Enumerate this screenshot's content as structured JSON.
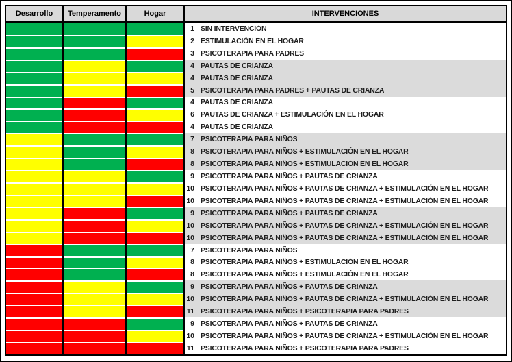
{
  "table": {
    "headers": [
      "Desarrollo",
      "Temperamento",
      "Hogar",
      "INTERVENCIONES"
    ],
    "legend_colors": {
      "green": "#00B050",
      "yellow": "#FFFF00",
      "red": "#FF0000"
    },
    "band_color": "#DBDBDB",
    "header_bg": "#D9D9D9",
    "rows": [
      {
        "colors": [
          "green",
          "green",
          "green"
        ],
        "num": "1",
        "label": "SIN INTERVENCIÓN",
        "band": false
      },
      {
        "colors": [
          "green",
          "green",
          "yellow"
        ],
        "num": "2",
        "label": "ESTIMULACIÓN EN EL HOGAR",
        "band": false
      },
      {
        "colors": [
          "green",
          "green",
          "red"
        ],
        "num": "3",
        "label": "PSICOTERAPIA PARA PADRES",
        "band": false
      },
      {
        "colors": [
          "green",
          "yellow",
          "green"
        ],
        "num": "4",
        "label": "PAUTAS DE CRIANZA",
        "band": true
      },
      {
        "colors": [
          "green",
          "yellow",
          "yellow"
        ],
        "num": "4",
        "label": "PAUTAS DE CRIANZA",
        "band": true
      },
      {
        "colors": [
          "green",
          "yellow",
          "red"
        ],
        "num": "5",
        "label": "PSICOTERAPIA PARA PADRES + PAUTAS DE CRIANZA",
        "band": true
      },
      {
        "colors": [
          "green",
          "red",
          "green"
        ],
        "num": "4",
        "label": "PAUTAS DE CRIANZA",
        "band": false
      },
      {
        "colors": [
          "green",
          "red",
          "yellow"
        ],
        "num": "6",
        "label": "PAUTAS DE CRIANZA + ESTIMULACIÓN EN EL HOGAR",
        "band": false
      },
      {
        "colors": [
          "green",
          "red",
          "red"
        ],
        "num": "4",
        "label": "PAUTAS DE CRIANZA",
        "band": false
      },
      {
        "colors": [
          "yellow",
          "green",
          "green"
        ],
        "num": "7",
        "label": "PSICOTERAPIA PARA NIÑOS",
        "band": true
      },
      {
        "colors": [
          "yellow",
          "green",
          "yellow"
        ],
        "num": "8",
        "label": "PSICOTERAPIA PARA NIÑOS + ESTIMULACIÓN EN EL HOGAR",
        "band": true
      },
      {
        "colors": [
          "yellow",
          "green",
          "red"
        ],
        "num": "8",
        "label": "PSICOTERAPIA PARA NIÑOS + ESTIMULACIÓN EN EL HOGAR",
        "band": true
      },
      {
        "colors": [
          "yellow",
          "yellow",
          "green"
        ],
        "num": "9",
        "label": "PSICOTERAPIA PARA NIÑOS + PAUTAS DE CRIANZA",
        "band": false
      },
      {
        "colors": [
          "yellow",
          "yellow",
          "yellow"
        ],
        "num": "10",
        "label": "PSICOTERAPIA PARA NIÑOS + PAUTAS DE CRIANZA + ESTIMULACIÓN EN EL HOGAR",
        "band": false
      },
      {
        "colors": [
          "yellow",
          "yellow",
          "red"
        ],
        "num": "10",
        "label": "PSICOTERAPIA PARA NIÑOS + PAUTAS DE CRIANZA + ESTIMULACIÓN EN EL HOGAR",
        "band": false
      },
      {
        "colors": [
          "yellow",
          "red",
          "green"
        ],
        "num": "9",
        "label": "PSICOTERAPIA PARA NIÑOS + PAUTAS DE CRIANZA",
        "band": true
      },
      {
        "colors": [
          "yellow",
          "red",
          "yellow"
        ],
        "num": "10",
        "label": "PSICOTERAPIA PARA NIÑOS + PAUTAS DE CRIANZA + ESTIMULACIÓN EN EL HOGAR",
        "band": true
      },
      {
        "colors": [
          "yellow",
          "red",
          "red"
        ],
        "num": "10",
        "label": "PSICOTERAPIA PARA NIÑOS + PAUTAS DE CRIANZA + ESTIMULACIÓN EN EL HOGAR",
        "band": true
      },
      {
        "colors": [
          "red",
          "green",
          "green"
        ],
        "num": "7",
        "label": "PSICOTERAPIA PARA NIÑOS",
        "band": false
      },
      {
        "colors": [
          "red",
          "green",
          "yellow"
        ],
        "num": "8",
        "label": "PSICOTERAPIA PARA NIÑOS + ESTIMULACIÓN EN EL HOGAR",
        "band": false
      },
      {
        "colors": [
          "red",
          "green",
          "red"
        ],
        "num": "8",
        "label": "PSICOTERAPIA PARA NIÑOS + ESTIMULACIÓN EN EL HOGAR",
        "band": false
      },
      {
        "colors": [
          "red",
          "yellow",
          "green"
        ],
        "num": "9",
        "label": "PSICOTERAPIA PARA NIÑOS + PAUTAS DE CRIANZA",
        "band": true
      },
      {
        "colors": [
          "red",
          "yellow",
          "yellow"
        ],
        "num": "10",
        "label": "PSICOTERAPIA PARA NIÑOS + PAUTAS DE CRIANZA + ESTIMULACIÓN EN EL HOGAR",
        "band": true
      },
      {
        "colors": [
          "red",
          "yellow",
          "red"
        ],
        "num": "11",
        "label": "PSICOTERAPIA PARA NIÑOS + PSICOTERAPIA PARA PADRES",
        "band": true
      },
      {
        "colors": [
          "red",
          "red",
          "green"
        ],
        "num": "9",
        "label": "PSICOTERAPIA PARA NIÑOS + PAUTAS DE CRIANZA",
        "band": false
      },
      {
        "colors": [
          "red",
          "red",
          "yellow"
        ],
        "num": "10",
        "label": "PSICOTERAPIA PARA NIÑOS + PAUTAS DE CRIANZA + ESTIMULACIÓN EN EL HOGAR",
        "band": false
      },
      {
        "colors": [
          "red",
          "red",
          "red"
        ],
        "num": "11",
        "label": "PSICOTERAPIA PARA NIÑOS + PSICOTERAPIA PARA PADRES",
        "band": false
      }
    ]
  }
}
